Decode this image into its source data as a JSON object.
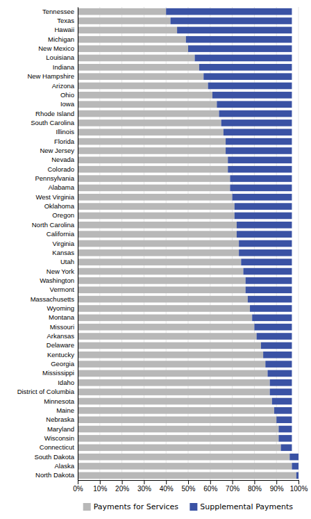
{
  "chart_data": {
    "type": "bar",
    "orientation": "horizontal",
    "stacked": true,
    "categories": [
      "Tennessee",
      "Texas",
      "Hawaii",
      "Michigan",
      "New Mexico",
      "Louisiana",
      "Indiana",
      "New Hampshire",
      "Arizona",
      "Ohio",
      "Iowa",
      "Rhode Island",
      "South Carolina",
      "Illinois",
      "Florida",
      "New Jersey",
      "Nevada",
      "Colorado",
      "Pennsylvania",
      "Alabama",
      "West Virginia",
      "Oklahoma",
      "Oregon",
      "North Carolina",
      "California",
      "Virginia",
      "Kansas",
      "Utah",
      "New York",
      "Washington",
      "Vermont",
      "Massachusetts",
      "Wyoming",
      "Montana",
      "Missouri",
      "Arkansas",
      "Delaware",
      "Kentucky",
      "Georgia",
      "Mississippi",
      "Idaho",
      "District of Columbia",
      "Minnesota",
      "Maine",
      "Nebraska",
      "Maryland",
      "Wisconsin",
      "Connecticut",
      "South Dakota",
      "Alaska",
      "North Dakota"
    ],
    "series": [
      {
        "name": "Payments for Services",
        "color": "#b8b8b8",
        "values": [
          40,
          42,
          45,
          49,
          50,
          53,
          55,
          57,
          59,
          61,
          63,
          64,
          65,
          66,
          67,
          67,
          68,
          68,
          69,
          69,
          70,
          71,
          71,
          72,
          72,
          73,
          73,
          74,
          75,
          76,
          76,
          77,
          78,
          79,
          80,
          81,
          83,
          84,
          85,
          86,
          87,
          87,
          88,
          89,
          90,
          91,
          91,
          92,
          96,
          97,
          99
        ]
      },
      {
        "name": "Supplemental Payments",
        "color": "#3a52a4",
        "values": [
          57,
          55,
          52,
          48,
          47,
          44,
          42,
          40,
          38,
          36,
          34,
          33,
          32,
          31,
          30,
          30,
          29,
          29,
          28,
          28,
          27,
          26,
          26,
          25,
          25,
          24,
          24,
          23,
          22,
          21,
          21,
          20,
          19,
          18,
          17,
          16,
          14,
          13,
          12,
          11,
          10,
          10,
          9,
          8,
          7,
          6,
          6,
          5,
          4,
          3,
          1
        ]
      }
    ],
    "xlim": [
      0,
      100
    ],
    "xticks": [
      {
        "value": 0,
        "label": "0%"
      },
      {
        "value": 10,
        "label": "10%"
      },
      {
        "value": 20,
        "label": "20%"
      },
      {
        "value": 30,
        "label": "30%"
      },
      {
        "value": 40,
        "label": "40%"
      },
      {
        "value": 50,
        "label": "50%"
      },
      {
        "value": 60,
        "label": "60%"
      },
      {
        "value": 70,
        "label": "70%"
      },
      {
        "value": 80,
        "label": "80%"
      },
      {
        "value": 90,
        "label": "90%"
      },
      {
        "value": 100,
        "label": "100%"
      }
    ],
    "grid": true,
    "legend": "bottom"
  }
}
